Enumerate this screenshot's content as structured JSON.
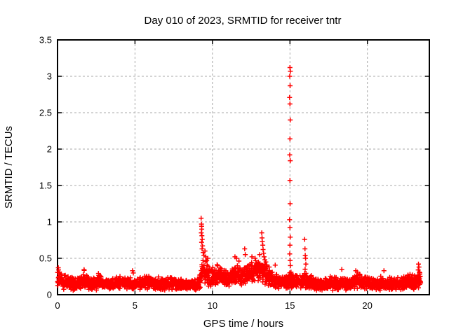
{
  "page": {
    "background": "#ffffff",
    "text_color": "#000000"
  },
  "chart_data": {
    "type": "scatter",
    "title": "Day 010 of 2023, SRMTID for receiver tntr",
    "xlabel": "GPS time / hours",
    "ylabel": "SRMTID / TECUs",
    "series_name": "SRMTID",
    "xlim": [
      0,
      24
    ],
    "ylim": [
      0,
      3.5
    ],
    "xticks": {
      "values": [
        0,
        5,
        10,
        15,
        20
      ],
      "labels": [
        "0",
        "5",
        "10",
        "15",
        "20"
      ]
    },
    "yticks": {
      "values": [
        0,
        0.5,
        1,
        1.5,
        2,
        2.5,
        3,
        3.5
      ],
      "labels": [
        "0",
        "0.5",
        "1",
        "1.5",
        "2",
        "2.5",
        "3",
        "3.5"
      ]
    },
    "grid": {
      "show": true,
      "color": "#a8a8a8",
      "dash": "3,3"
    },
    "legend": {
      "show": false
    },
    "marker": {
      "shape": "plus",
      "color": "#ff0000"
    },
    "sampling": {
      "interval_hours": 0.01,
      "start_hour": 0,
      "end_hour": 23.45,
      "seed": 20230110,
      "noise_floor": 0.015,
      "noise_scale": 1.2,
      "upspike_chance": 0.025,
      "upspike_max": 0.14
    },
    "baseline_profile": [
      [
        0.0,
        0.2,
        0.1
      ],
      [
        0.4,
        0.17,
        0.09
      ],
      [
        1.0,
        0.15,
        0.08
      ],
      [
        1.6,
        0.18,
        0.09
      ],
      [
        2.2,
        0.15,
        0.08
      ],
      [
        2.7,
        0.17,
        0.09
      ],
      [
        3.4,
        0.15,
        0.08
      ],
      [
        4.2,
        0.17,
        0.08
      ],
      [
        5.0,
        0.15,
        0.08
      ],
      [
        5.6,
        0.17,
        0.09
      ],
      [
        6.5,
        0.15,
        0.08
      ],
      [
        7.4,
        0.16,
        0.08
      ],
      [
        8.2,
        0.13,
        0.07
      ],
      [
        8.9,
        0.12,
        0.07
      ],
      [
        9.15,
        0.16,
        0.09
      ],
      [
        9.35,
        0.33,
        0.16
      ],
      [
        9.6,
        0.3,
        0.14
      ],
      [
        9.9,
        0.23,
        0.11
      ],
      [
        10.3,
        0.27,
        0.12
      ],
      [
        10.7,
        0.24,
        0.11
      ],
      [
        11.1,
        0.22,
        0.1
      ],
      [
        11.5,
        0.29,
        0.13
      ],
      [
        11.9,
        0.25,
        0.12
      ],
      [
        12.3,
        0.28,
        0.13
      ],
      [
        12.7,
        0.3,
        0.14
      ],
      [
        13.1,
        0.34,
        0.15
      ],
      [
        13.4,
        0.3,
        0.14
      ],
      [
        13.8,
        0.22,
        0.11
      ],
      [
        14.3,
        0.18,
        0.09
      ],
      [
        14.8,
        0.17,
        0.09
      ],
      [
        15.05,
        0.21,
        0.11
      ],
      [
        15.4,
        0.18,
        0.09
      ],
      [
        16.0,
        0.18,
        0.1
      ],
      [
        16.5,
        0.15,
        0.08
      ],
      [
        17.2,
        0.14,
        0.08
      ],
      [
        18.0,
        0.15,
        0.08
      ],
      [
        18.8,
        0.14,
        0.08
      ],
      [
        19.2,
        0.19,
        0.1
      ],
      [
        19.6,
        0.18,
        0.09
      ],
      [
        20.1,
        0.15,
        0.08
      ],
      [
        20.8,
        0.14,
        0.08
      ],
      [
        21.4,
        0.16,
        0.09
      ],
      [
        22.0,
        0.14,
        0.08
      ],
      [
        22.6,
        0.17,
        0.09
      ],
      [
        23.05,
        0.18,
        0.1
      ],
      [
        23.45,
        0.22,
        0.11
      ]
    ],
    "outliers": [
      [
        0.05,
        0.37
      ],
      [
        0.07,
        0.34
      ],
      [
        0.1,
        0.31
      ],
      [
        0.13,
        0.29
      ],
      [
        9.27,
        1.05
      ],
      [
        9.29,
        0.97
      ],
      [
        9.3,
        0.94
      ],
      [
        9.31,
        0.9
      ],
      [
        9.28,
        0.85
      ],
      [
        9.32,
        0.81
      ],
      [
        9.34,
        0.76
      ],
      [
        9.3,
        0.72
      ],
      [
        9.36,
        0.67
      ],
      [
        9.33,
        0.63
      ],
      [
        9.4,
        0.58
      ],
      [
        9.45,
        0.54
      ],
      [
        9.52,
        0.6
      ],
      [
        9.57,
        0.52
      ],
      [
        9.63,
        0.47
      ],
      [
        9.7,
        0.5
      ],
      [
        11.45,
        0.52
      ],
      [
        11.55,
        0.5
      ],
      [
        12.08,
        0.63
      ],
      [
        12.12,
        0.55
      ],
      [
        12.55,
        0.52
      ],
      [
        12.75,
        0.5
      ],
      [
        13.05,
        0.55
      ],
      [
        13.18,
        0.85
      ],
      [
        13.2,
        0.78
      ],
      [
        13.22,
        0.73
      ],
      [
        13.25,
        0.68
      ],
      [
        13.27,
        0.62
      ],
      [
        13.3,
        0.57
      ],
      [
        13.33,
        0.52
      ],
      [
        13.38,
        0.48
      ],
      [
        13.45,
        0.45
      ],
      [
        15.0,
        3.12
      ],
      [
        15.03,
        3.07
      ],
      [
        14.99,
        3.0
      ],
      [
        15.01,
        2.87
      ],
      [
        14.98,
        2.71
      ],
      [
        15.0,
        2.62
      ],
      [
        15.02,
        2.4
      ],
      [
        15.0,
        2.14
      ],
      [
        14.99,
        1.92
      ],
      [
        15.02,
        1.84
      ],
      [
        15.0,
        1.57
      ],
      [
        15.01,
        1.25
      ],
      [
        14.98,
        1.03
      ],
      [
        15.0,
        0.92
      ],
      [
        15.02,
        0.79
      ],
      [
        15.0,
        0.68
      ],
      [
        14.99,
        0.56
      ],
      [
        15.01,
        0.47
      ],
      [
        15.03,
        0.4
      ],
      [
        15.95,
        0.76
      ],
      [
        15.97,
        0.63
      ],
      [
        15.99,
        0.54
      ],
      [
        16.01,
        0.5
      ],
      [
        16.03,
        0.42
      ],
      [
        15.98,
        0.35
      ],
      [
        19.25,
        0.33
      ],
      [
        19.35,
        0.31
      ],
      [
        23.3,
        0.42
      ],
      [
        23.33,
        0.38
      ],
      [
        23.28,
        0.34
      ],
      [
        23.35,
        0.31
      ],
      [
        23.38,
        0.28
      ]
    ]
  }
}
